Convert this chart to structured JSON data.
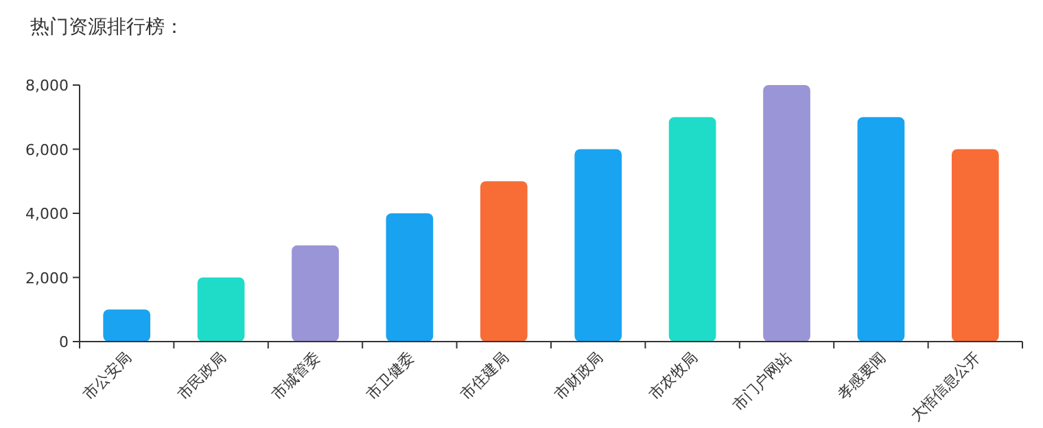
{
  "chart_data": {
    "type": "bar",
    "title": "热门资源排行榜：",
    "categories": [
      "市公安局",
      "市民政局",
      "市城管委",
      "市卫健委",
      "市住建局",
      "市财政局",
      "市农牧局",
      "市门户网站",
      "孝感要闻",
      "大悟信息公开"
    ],
    "values": [
      1000,
      2000,
      3000,
      4000,
      5000,
      6000,
      7000,
      8000,
      7000,
      6000
    ],
    "colors": [
      "#1aa3f0",
      "#1edcc8",
      "#9a95d6",
      "#18a2f0",
      "#f76d35",
      "#18a4f0",
      "#1edcc8",
      "#9a95d6",
      "#18a4f0",
      "#f76d35"
    ],
    "ylim": [
      0,
      8000
    ],
    "yticks": [
      {
        "value": 0,
        "label": "0"
      },
      {
        "value": 2000,
        "label": "2,000"
      },
      {
        "value": 4000,
        "label": "4,000"
      },
      {
        "value": 6000,
        "label": "6,000"
      },
      {
        "value": 8000,
        "label": "8,000"
      }
    ],
    "grid": false
  }
}
